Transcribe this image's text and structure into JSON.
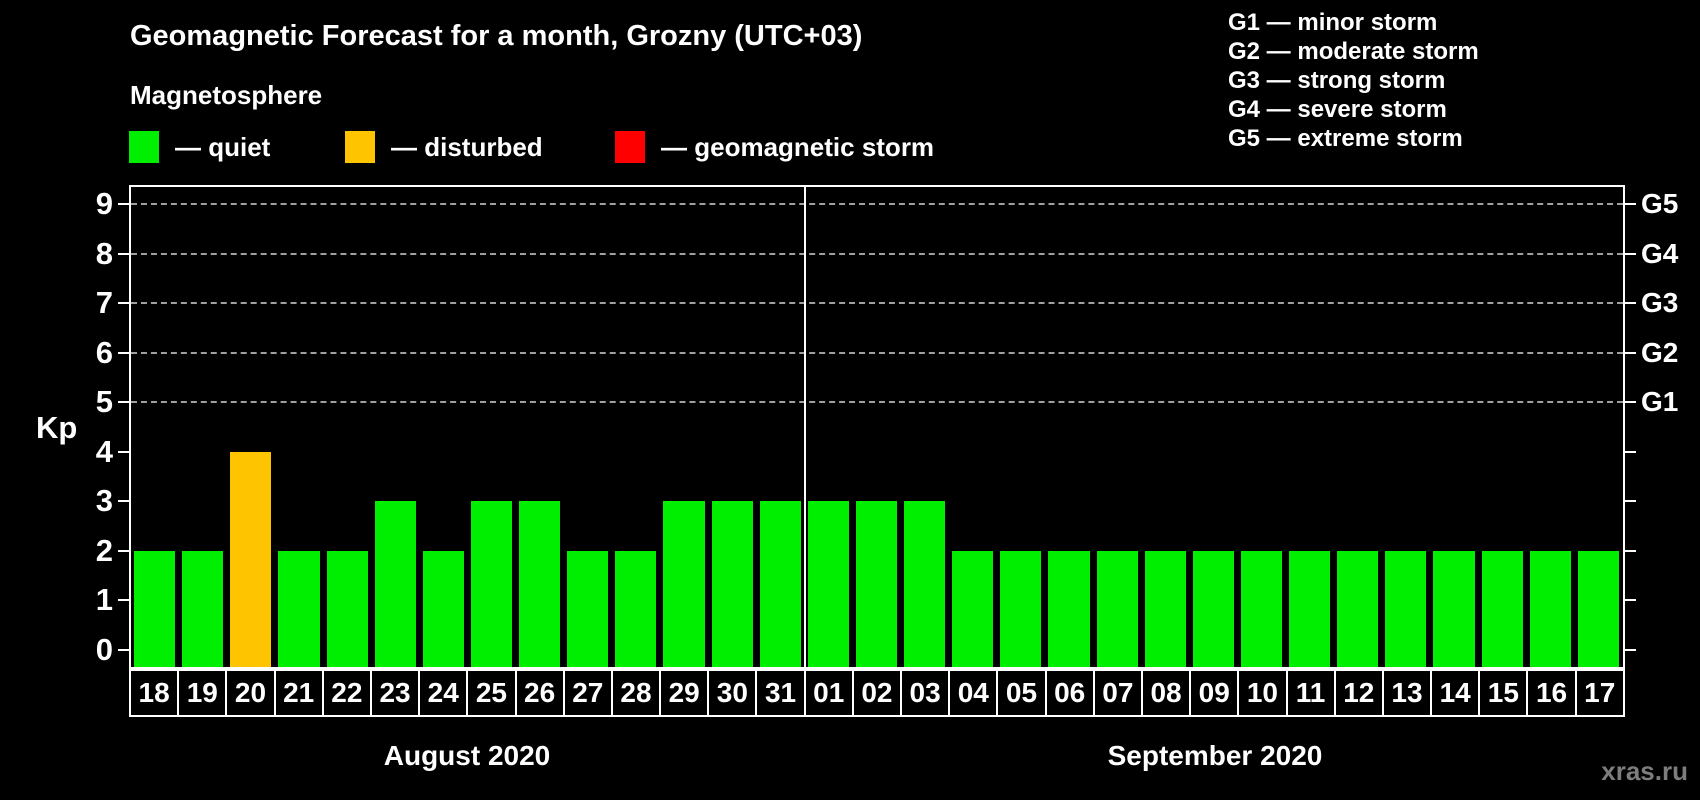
{
  "header": {
    "title": "Geomagnetic Forecast for a month, Grozny (UTC+03)",
    "subtitle": "Magnetosphere"
  },
  "legend": {
    "items": [
      {
        "name": "quiet",
        "label": "— quiet",
        "color": "#00ee00"
      },
      {
        "name": "disturbed",
        "label": "— disturbed",
        "color": "#ffc400"
      },
      {
        "name": "storm",
        "label": "— geomagnetic storm",
        "color": "#ff0000"
      }
    ]
  },
  "storm_scale": {
    "items": [
      "G1 — minor storm",
      "G2 — moderate storm",
      "G3 — strong storm",
      "G4 — severe storm",
      "G5 — extreme storm"
    ]
  },
  "watermark": "xras.ru",
  "chart_data": {
    "type": "bar",
    "title": "Geomagnetic Forecast for a month, Grozny (UTC+03)",
    "ylabel": "Kp",
    "ylim": [
      -0.35,
      9.35
    ],
    "yticks": [
      0,
      1,
      2,
      3,
      4,
      5,
      6,
      7,
      8,
      9
    ],
    "gridlines": [
      5,
      6,
      7,
      8,
      9
    ],
    "grid_color": "#a0a0a0",
    "right_axis": [
      {
        "value": 5,
        "label": "G1"
      },
      {
        "value": 6,
        "label": "G2"
      },
      {
        "value": 7,
        "label": "G3"
      },
      {
        "value": 8,
        "label": "G4"
      },
      {
        "value": 9,
        "label": "G5"
      }
    ],
    "months": [
      {
        "label": "August 2020",
        "days": 14
      },
      {
        "label": "September 2020",
        "days": 17
      }
    ],
    "colors": {
      "quiet": "#00ee00",
      "disturbed": "#ffc400",
      "storm": "#ff0000"
    },
    "bars": [
      {
        "day": "18",
        "kp": 2,
        "status": "quiet"
      },
      {
        "day": "19",
        "kp": 2,
        "status": "quiet"
      },
      {
        "day": "20",
        "kp": 4,
        "status": "disturbed"
      },
      {
        "day": "21",
        "kp": 2,
        "status": "quiet"
      },
      {
        "day": "22",
        "kp": 2,
        "status": "quiet"
      },
      {
        "day": "23",
        "kp": 3,
        "status": "quiet"
      },
      {
        "day": "24",
        "kp": 2,
        "status": "quiet"
      },
      {
        "day": "25",
        "kp": 3,
        "status": "quiet"
      },
      {
        "day": "26",
        "kp": 3,
        "status": "quiet"
      },
      {
        "day": "27",
        "kp": 2,
        "status": "quiet"
      },
      {
        "day": "28",
        "kp": 2,
        "status": "quiet"
      },
      {
        "day": "29",
        "kp": 3,
        "status": "quiet"
      },
      {
        "day": "30",
        "kp": 3,
        "status": "quiet"
      },
      {
        "day": "31",
        "kp": 3,
        "status": "quiet"
      },
      {
        "day": "01",
        "kp": 3,
        "status": "quiet"
      },
      {
        "day": "02",
        "kp": 3,
        "status": "quiet"
      },
      {
        "day": "03",
        "kp": 3,
        "status": "quiet"
      },
      {
        "day": "04",
        "kp": 2,
        "status": "quiet"
      },
      {
        "day": "05",
        "kp": 2,
        "status": "quiet"
      },
      {
        "day": "06",
        "kp": 2,
        "status": "quiet"
      },
      {
        "day": "07",
        "kp": 2,
        "status": "quiet"
      },
      {
        "day": "08",
        "kp": 2,
        "status": "quiet"
      },
      {
        "day": "09",
        "kp": 2,
        "status": "quiet"
      },
      {
        "day": "10",
        "kp": 2,
        "status": "quiet"
      },
      {
        "day": "11",
        "kp": 2,
        "status": "quiet"
      },
      {
        "day": "12",
        "kp": 2,
        "status": "quiet"
      },
      {
        "day": "13",
        "kp": 2,
        "status": "quiet"
      },
      {
        "day": "14",
        "kp": 2,
        "status": "quiet"
      },
      {
        "day": "15",
        "kp": 2,
        "status": "quiet"
      },
      {
        "day": "16",
        "kp": 2,
        "status": "quiet"
      },
      {
        "day": "17",
        "kp": 2,
        "status": "quiet"
      }
    ]
  }
}
